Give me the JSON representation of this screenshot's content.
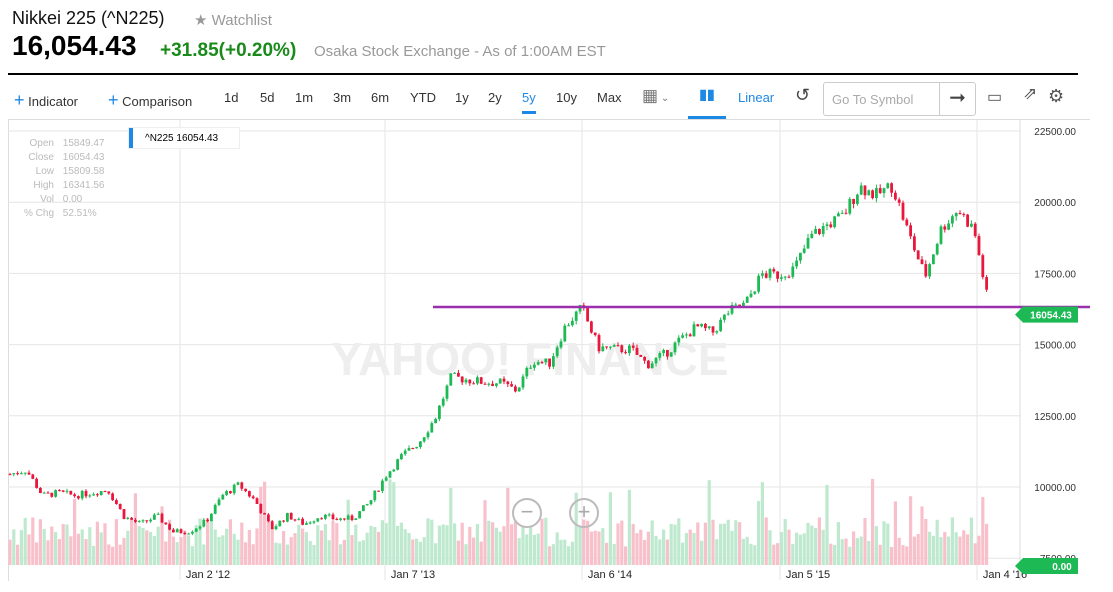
{
  "header": {
    "title": "Nikkei 225 (^N225)",
    "watchlist": "Watchlist",
    "price": "16,054.43",
    "change": "+31.85(+0.20%)",
    "exchange": "Osaka Stock Exchange - As of 1:00AM EST"
  },
  "toolbar": {
    "indicator": "Indicator",
    "comparison": "Comparison",
    "ranges": [
      "1d",
      "5d",
      "1m",
      "3m",
      "6m",
      "YTD",
      "1y",
      "2y",
      "5y",
      "10y",
      "Max"
    ],
    "active_range": "5y",
    "scale": "Linear",
    "symbol_placeholder": "Go To Symbol"
  },
  "legend": {
    "label": "^N225 16054.43",
    "color": "#1e88e5"
  },
  "ohlc": {
    "labels": [
      "Open",
      "Close",
      "Low",
      "High",
      "Vol",
      "% Chg"
    ],
    "values": [
      "15849.47",
      "16054.43",
      "15809.58",
      "16341.56",
      "0.00",
      "52.51%"
    ]
  },
  "watermark": "YAHOO! FINANCE",
  "chart_data": {
    "type": "candlestick",
    "y_ticks": [
      "22500.00",
      "20000.00",
      "17500.00",
      "15000.00",
      "12500.00",
      "10000.00",
      "7500.00"
    ],
    "ylim": [
      7500,
      22500
    ],
    "x_ticks": [
      "Jan 2 '12",
      "Jan 7 '13",
      "Jan 6 '14",
      "Jan 5 '15",
      "Jan 4 '16"
    ],
    "monthly_close": [
      10450,
      10600,
      9700,
      9800,
      9700,
      9800,
      9900,
      8950,
      8700,
      8990,
      8430,
      8450,
      8800,
      9700,
      10080,
      9520,
      8540,
      9000,
      8700,
      9000,
      8870,
      8900,
      9450,
      10400,
      11100,
      11550,
      12400,
      13860,
      13770,
      13680,
      13660,
      13390,
      14450,
      14330,
      15660,
      16290,
      14900,
      14840,
      14830,
      14300,
      14630,
      15160,
      15620,
      15420,
      16170,
      16410,
      17460,
      17450,
      17670,
      18800,
      19200,
      19520,
      20560,
      20240,
      20590,
      18890,
      17390,
      19080,
      19750,
      19030,
      16054
    ],
    "horizontal_line": 16320,
    "last_price_tag": "16054.43",
    "volume_tag": "0.00",
    "colors": {
      "up": "#1db954",
      "down": "#e8173b",
      "line": "#9b2fae",
      "tag": "#1db954"
    }
  }
}
